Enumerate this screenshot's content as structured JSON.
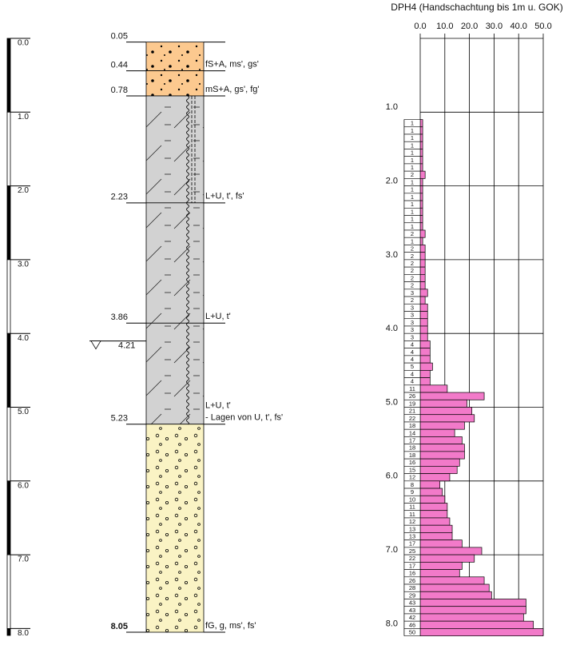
{
  "scale": {
    "ticks": [
      {
        "value": 0,
        "label": "0.0"
      },
      {
        "value": 1,
        "label": "1.0"
      },
      {
        "value": 2,
        "label": "2.0"
      },
      {
        "value": 3,
        "label": "3.0"
      },
      {
        "value": 4,
        "label": "4.0"
      },
      {
        "value": 5,
        "label": "5.0"
      },
      {
        "value": 6,
        "label": "6.0"
      },
      {
        "value": 7,
        "label": "7.0"
      },
      {
        "value": 8,
        "label": "8.0"
      }
    ]
  },
  "profile": {
    "layers": [
      {
        "top": {
          "value": 0.05,
          "label": "0.05"
        },
        "description": [
          "fS+A, ms', gs'"
        ],
        "color": "#fcc98f",
        "pattern": "dots"
      },
      {
        "top": {
          "value": 0.44,
          "label": "0.44"
        },
        "description": [
          "mS+A, gs', fg'"
        ],
        "color": "#fcc98f",
        "pattern": "dots"
      },
      {
        "top": {
          "value": 0.78,
          "label": "0.78"
        },
        "description": [
          "L+U, t', fs'"
        ],
        "color": "#d2d2d2",
        "pattern": "hatch"
      },
      {
        "top": {
          "value": 2.23,
          "label": "2.23"
        },
        "description": [
          "L+U, t'"
        ],
        "color": "#d2d2d2",
        "pattern": "hatch"
      },
      {
        "top": {
          "value": 3.86,
          "label": "3.86"
        },
        "description": [
          "L+U, t'",
          "-  Lagen von U, t', fs'"
        ],
        "color": "#d2d2d2",
        "pattern": "hatch"
      },
      {
        "top": {
          "value": 5.23,
          "label": "5.23"
        },
        "description": [
          "fG, g, ms', fs'"
        ],
        "color": "#faf3c4",
        "pattern": "circles"
      }
    ],
    "bottom": {
      "value": 8.05,
      "label": "8.05"
    },
    "water": {
      "value": 4.21,
      "label": "4.21"
    }
  },
  "dph": {
    "title": "DPH4 (Handschachtung bis 1m u. GOK)",
    "xlim": [
      0,
      50
    ],
    "xticks": [
      {
        "value": 0,
        "label": "0.0"
      },
      {
        "value": 10,
        "label": "10.0"
      },
      {
        "value": 20,
        "label": "20.0"
      },
      {
        "value": 30,
        "label": "30.0"
      },
      {
        "value": 40,
        "label": "40.0"
      },
      {
        "value": 50,
        "label": "50.0"
      }
    ],
    "depth_ticks": [
      {
        "value": 1,
        "label": "1.0"
      },
      {
        "value": 2,
        "label": "2.0"
      },
      {
        "value": 3,
        "label": "3.0"
      },
      {
        "value": 4,
        "label": "4.0"
      },
      {
        "value": 5,
        "label": "5.0"
      },
      {
        "value": 6,
        "label": "6.0"
      },
      {
        "value": 7,
        "label": "7.0"
      },
      {
        "value": 8,
        "label": "8.0"
      }
    ],
    "color": "#f27ac9",
    "depths": [
      1.1,
      1.2,
      1.3,
      1.4,
      1.5,
      1.6,
      1.7,
      1.8,
      1.9,
      2.0,
      2.1,
      2.2,
      2.3,
      2.4,
      2.5,
      2.6,
      2.7,
      2.8,
      2.9,
      3.0,
      3.1,
      3.2,
      3.3,
      3.4,
      3.5,
      3.6,
      3.7,
      3.8,
      3.9,
      4.0,
      4.1,
      4.2,
      4.3,
      4.4,
      4.5,
      4.6,
      4.7,
      4.8,
      4.9,
      5.0,
      5.1,
      5.2,
      5.3,
      5.4,
      5.5,
      5.6,
      5.7,
      5.8,
      5.9,
      6.0,
      6.1,
      6.2,
      6.3,
      6.4,
      6.5,
      6.6,
      6.7,
      6.8,
      6.9,
      7.0,
      7.1,
      7.2,
      7.3,
      7.4,
      7.5,
      7.6,
      7.7,
      7.8,
      7.9,
      8.0
    ],
    "values": [
      1,
      1,
      1,
      1,
      1,
      1,
      1,
      2,
      1,
      1,
      1,
      1,
      1,
      1,
      1,
      2,
      1,
      2,
      2,
      2,
      2,
      2,
      2,
      3,
      2,
      3,
      3,
      3,
      3,
      3,
      4,
      4,
      4,
      5,
      4,
      4,
      11,
      26,
      19,
      21,
      22,
      18,
      14,
      17,
      18,
      18,
      16,
      15,
      12,
      8,
      9,
      10,
      11,
      11,
      12,
      13,
      13,
      17,
      25,
      22,
      17,
      16,
      26,
      28,
      29,
      43,
      43,
      42,
      46,
      50
    ]
  }
}
